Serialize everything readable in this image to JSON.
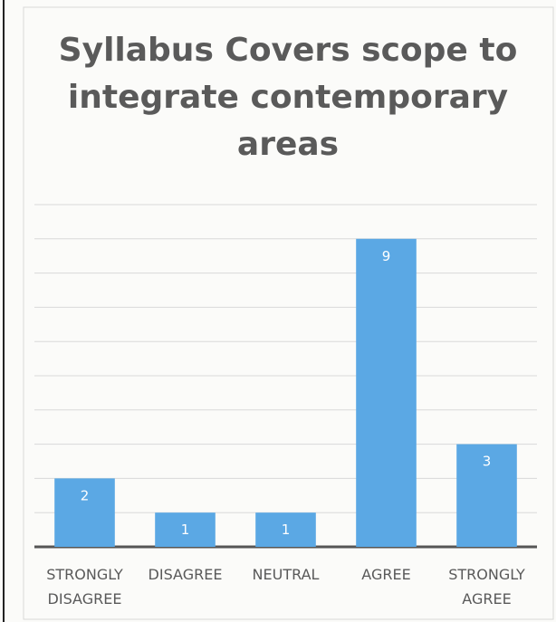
{
  "chart_data": {
    "type": "bar",
    "title": "Syllabus Covers scope to integrate contemporary areas",
    "categories": [
      "STRONGLY DISAGREE",
      "DISAGREE",
      "NEUTRAL",
      "AGREE",
      "STRONGLY AGREE"
    ],
    "values": [
      2,
      1,
      1,
      9,
      3
    ],
    "color": "#5ba8e4",
    "ylim": [
      0,
      10
    ],
    "yticks": [
      0,
      1,
      2,
      3,
      4,
      5,
      6,
      7,
      8,
      9,
      10
    ],
    "ytick_labels": false,
    "grid": true
  }
}
